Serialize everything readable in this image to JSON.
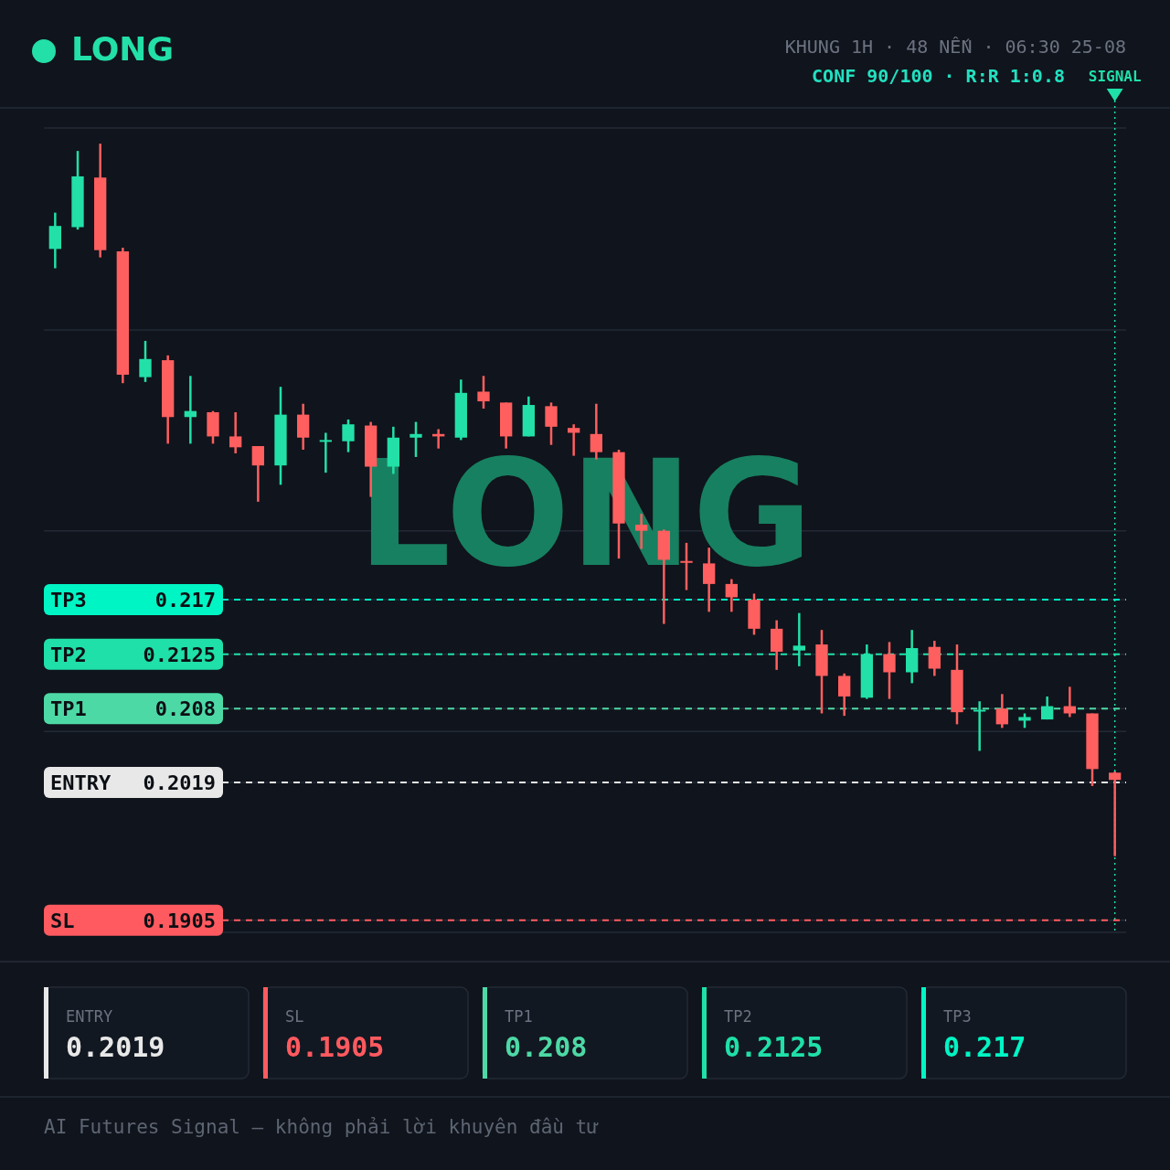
{
  "chart_data": {
    "type": "candlestick",
    "title": "LONG",
    "subtitle": "KHUNG 1H · 48 NẾN · 06:30 25-08",
    "annotations": [
      "CONF 90/100 · R:R 1:0.8",
      "LONG",
      "SIGNAL",
      "AI Futures Signal — không phải lời khuyên đầu tư",
      "ENTRY",
      "0.2019",
      "SL",
      "0.1905",
      "TP1",
      "0.208",
      "TP2",
      "0.2125",
      "TP3",
      "0.217"
    ],
    "categories": [
      null,
      null,
      null,
      null,
      null,
      null,
      null,
      null,
      null,
      null,
      null,
      null,
      null,
      null,
      null,
      null,
      null,
      null,
      null,
      null,
      null,
      null,
      null,
      null,
      null,
      null,
      null,
      null,
      null,
      null,
      null,
      null,
      null,
      null,
      null,
      null,
      null,
      null,
      null,
      null,
      null,
      null,
      null,
      null,
      null,
      null,
      null,
      null
    ],
    "ohlc": [
      [
        0.246,
        0.249,
        0.2444,
        0.2479
      ],
      [
        0.2478,
        0.2541,
        0.2476,
        0.252
      ],
      [
        0.2519,
        0.2547,
        0.2453,
        0.2459
      ],
      [
        0.2458,
        0.2461,
        0.2349,
        0.2356
      ],
      [
        0.2354,
        0.2384,
        0.235,
        0.2369
      ],
      [
        0.2368,
        0.2372,
        0.2299,
        0.2321
      ],
      [
        0.2321,
        0.2355,
        0.2299,
        0.2326
      ],
      [
        0.2325,
        0.2326,
        0.2299,
        0.2305
      ],
      [
        0.2305,
        0.2325,
        0.2291,
        0.2296
      ],
      [
        0.2297,
        0.2297,
        0.2251,
        0.2281
      ],
      [
        0.2281,
        0.2346,
        0.2265,
        0.2323
      ],
      [
        0.2323,
        0.2332,
        0.2294,
        0.2304
      ],
      [
        0.2301,
        0.2308,
        0.2275,
        0.2302
      ],
      [
        0.2301,
        0.2319,
        0.2292,
        0.2315
      ],
      [
        0.2314,
        0.2317,
        0.2255,
        0.228
      ],
      [
        0.228,
        0.2313,
        0.2274,
        0.2304
      ],
      [
        0.2304,
        0.2317,
        0.2288,
        0.2307
      ],
      [
        0.2307,
        0.2311,
        0.2295,
        0.2305
      ],
      [
        0.2304,
        0.2352,
        0.2302,
        0.2341
      ],
      [
        0.2342,
        0.2355,
        0.2328,
        0.2334
      ],
      [
        0.2333,
        0.2333,
        0.2295,
        0.2305
      ],
      [
        0.2305,
        0.2338,
        0.2305,
        0.2331
      ],
      [
        0.233,
        0.2333,
        0.2298,
        0.2313
      ],
      [
        0.2312,
        0.2315,
        0.2289,
        0.2308
      ],
      [
        0.2307,
        0.2332,
        0.2286,
        0.2292
      ],
      [
        0.2292,
        0.2294,
        0.2204,
        0.2233
      ],
      [
        0.2232,
        0.2241,
        0.2212,
        0.2227
      ],
      [
        0.2227,
        0.2228,
        0.215,
        0.2203
      ],
      [
        0.2202,
        0.2217,
        0.2178,
        0.2201
      ],
      [
        0.22,
        0.2213,
        0.216,
        0.2183
      ],
      [
        0.2183,
        0.2187,
        0.216,
        0.2172
      ],
      [
        0.217,
        0.2175,
        0.2141,
        0.2146
      ],
      [
        0.2146,
        0.2153,
        0.2112,
        0.2127
      ],
      [
        0.2128,
        0.2159,
        0.2115,
        0.2132
      ],
      [
        0.2133,
        0.2145,
        0.2076,
        0.2107
      ],
      [
        0.2107,
        0.2109,
        0.2074,
        0.209
      ],
      [
        0.2089,
        0.2133,
        0.2088,
        0.2125
      ],
      [
        0.2125,
        0.2135,
        0.2088,
        0.211
      ],
      [
        0.211,
        0.2145,
        0.2101,
        0.213
      ],
      [
        0.2131,
        0.2136,
        0.2107,
        0.2113
      ],
      [
        0.2112,
        0.2133,
        0.2067,
        0.2077
      ],
      [
        0.2078,
        0.2086,
        0.2045,
        0.2079
      ],
      [
        0.208,
        0.2092,
        0.2064,
        0.2067
      ],
      [
        0.207,
        0.2076,
        0.2064,
        0.2073
      ],
      [
        0.2071,
        0.209,
        0.2071,
        0.2082
      ],
      [
        0.2082,
        0.2098,
        0.2073,
        0.2076
      ],
      [
        0.2076,
        0.2076,
        0.2016,
        0.203
      ],
      [
        0.2027,
        0.2028,
        0.1958,
        0.2021
      ]
    ],
    "colors": [
      "#22e0a8",
      "#22e0a8",
      "#ff5f5f",
      "#ff5f5f",
      "#22e0a8",
      "#ff5f5f",
      "#22e0a8",
      "#ff5f5f",
      "#ff5f5f",
      "#ff5f5f",
      "#22e0a8",
      "#ff5f5f",
      "#22e0a8",
      "#22e0a8",
      "#ff5f5f",
      "#22e0a8",
      "#22e0a8",
      "#ff5f5f",
      "#22e0a8",
      "#ff5f5f",
      "#ff5f5f",
      "#22e0a8",
      "#ff5f5f",
      "#ff5f5f",
      "#ff5f5f",
      "#ff5f5f",
      "#ff5f5f",
      "#ff5f5f",
      "#ff5f5f",
      "#ff5f5f",
      "#ff5f5f",
      "#ff5f5f",
      "#ff5f5f",
      "#22e0a8",
      "#ff5f5f",
      "#ff5f5f",
      "#22e0a8",
      "#ff5f5f",
      "#22e0a8",
      "#ff5f5f",
      "#ff5f5f",
      "#22e0a8",
      "#ff5f5f",
      "#22e0a8",
      "#22e0a8",
      "#ff5f5f",
      "#ff5f5f",
      "#ff5f5f"
    ],
    "ylim": [
      0.1895,
      0.256
    ],
    "yticks": [
      {
        "value": 0.1895,
        "label": null
      },
      0.1905,
      0.2019,
      {
        "value": 0.2061,
        "label": null
      },
      0.208,
      0.2125,
      0.217,
      {
        "value": 0.2227,
        "label": null
      },
      {
        "value": 0.2393,
        "label": null
      },
      {
        "value": 0.256,
        "label": null
      }
    ],
    "grid": "y",
    "ref_lines": [
      {
        "axis": "y",
        "value": 0.2019,
        "label": "ENTRY",
        "color": "#e8e8e8",
        "line_style": "dashed"
      },
      {
        "axis": "y",
        "value": 0.1905,
        "label": "SL",
        "color": "#ff5a5f",
        "line_style": "dashed"
      },
      {
        "axis": "y",
        "value": 0.208,
        "label": "TP1",
        "color": "#4dd9a5",
        "line_style": "dashed"
      },
      {
        "axis": "y",
        "value": 0.2125,
        "label": "TP2",
        "color": "#1fe0a8",
        "line_style": "dashed"
      },
      {
        "axis": "y",
        "value": 0.217,
        "label": "TP3",
        "color": "#00f5c4",
        "line_style": "dashed"
      }
    ]
  }
}
